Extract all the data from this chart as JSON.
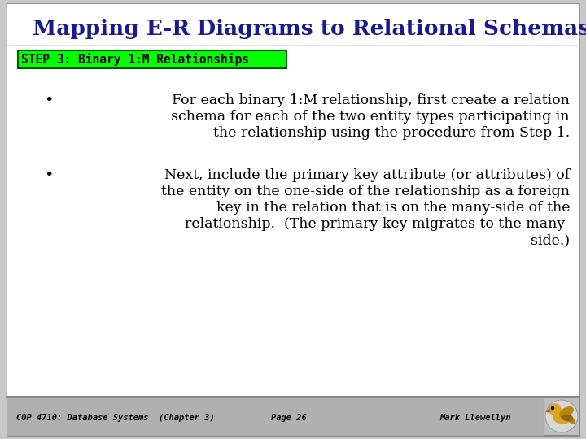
{
  "title": "Mapping E-R Diagrams to Relational Schemas",
  "title_color": "#1a1a8c",
  "subtitle": "STEP 3: Binary 1:M Relationships",
  "subtitle_bg": "#00ff00",
  "subtitle_border": "#005500",
  "subtitle_text_color": "#000000",
  "bullet1_lines": [
    "For each binary 1:M relationship, first create a relation",
    "schema for each of the two entity types participating in",
    "the relationship using the procedure from Step 1."
  ],
  "bullet2_lines": [
    "Next, include the primary key attribute (or attributes) of",
    "the entity on the one-side of the relationship as a foreign",
    "key in the relation that is on the many-side of the",
    "relationship.  (The primary key migrates to the many-",
    "side.)"
  ],
  "footer_left": "COP 4710: Database Systems  (Chapter 3)",
  "footer_center": "Page 26",
  "footer_right": "Mark Llewellyn",
  "bg_color": "#c8c8c8",
  "body_bg": "#ffffff",
  "footer_bg": "#b0b0b0"
}
